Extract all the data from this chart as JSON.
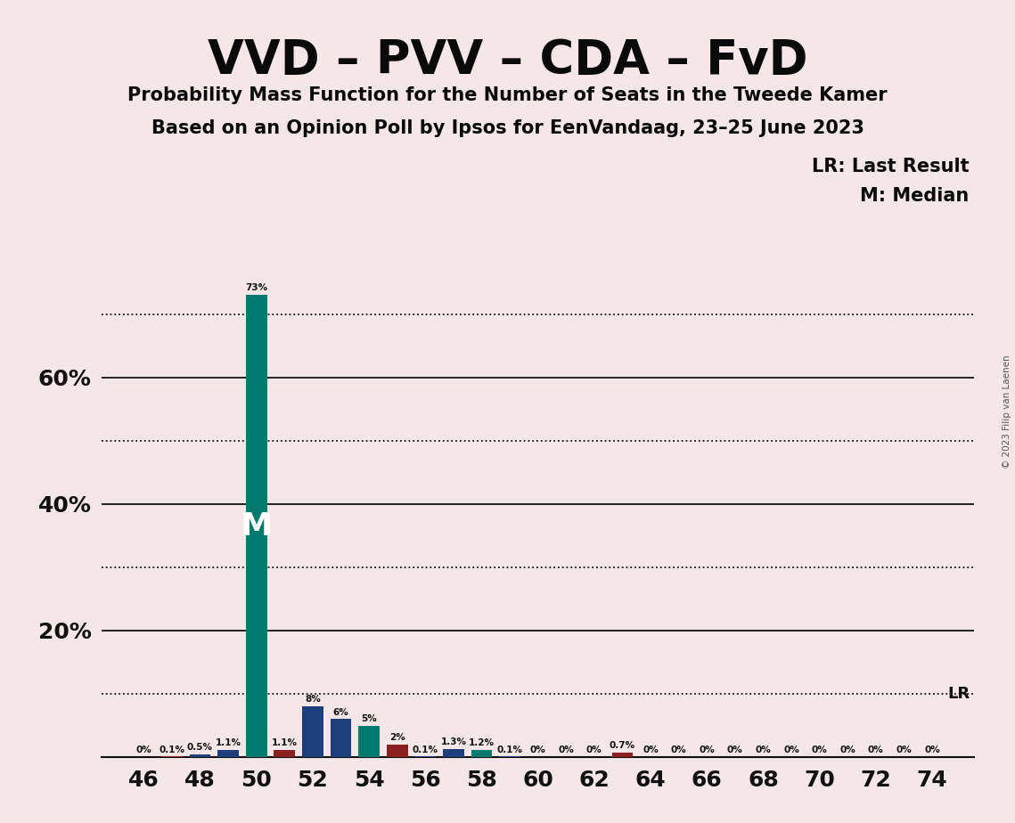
{
  "title": "VVD – PVV – CDA – FvD",
  "subtitle1": "Probability Mass Function for the Number of Seats in the Tweede Kamer",
  "subtitle2": "Based on an Opinion Poll by Ipsos for EenVandaag, 23–25 June 2023",
  "background_color": "#F5E6E8",
  "watermark": "© 2023 Filip van Laenen",
  "lr_label": "LR: Last Result",
  "m_label": "M: Median",
  "lr_value": 0.1,
  "median_seat": 50,
  "xlim": [
    44.5,
    75.5
  ],
  "ylim": [
    0,
    0.78
  ],
  "solid_lines": [
    0.0,
    0.2,
    0.4,
    0.6
  ],
  "dotted_lines": [
    0.1,
    0.3,
    0.5,
    0.7
  ],
  "ytick_positions": [
    0.2,
    0.4,
    0.6
  ],
  "ytick_labels": [
    "20%",
    "40%",
    "60%"
  ],
  "bars": [
    {
      "seat": 46,
      "color": "#1F3F7A",
      "value": 0.0,
      "label": "0%"
    },
    {
      "seat": 47,
      "color": "#8B2020",
      "value": 0.001,
      "label": "0.1%"
    },
    {
      "seat": 48,
      "color": "#1F3F7A",
      "value": 0.005,
      "label": "0.5%"
    },
    {
      "seat": 49,
      "color": "#1F3F7A",
      "value": 0.011,
      "label": "1.1%"
    },
    {
      "seat": 50,
      "color": "#007A6E",
      "value": 0.73,
      "label": "73%"
    },
    {
      "seat": 51,
      "color": "#8B2020",
      "value": 0.011,
      "label": "1.1%"
    },
    {
      "seat": 52,
      "color": "#1F3F7A",
      "value": 0.08,
      "label": "8%"
    },
    {
      "seat": 53,
      "color": "#1F3F7A",
      "value": 0.06,
      "label": "6%"
    },
    {
      "seat": 54,
      "color": "#007A6E",
      "value": 0.05,
      "label": "5%"
    },
    {
      "seat": 55,
      "color": "#8B2020",
      "value": 0.02,
      "label": "2%"
    },
    {
      "seat": 56,
      "color": "#1F3F7A",
      "value": 0.001,
      "label": "0.1%"
    },
    {
      "seat": 57,
      "color": "#1F3F7A",
      "value": 0.013,
      "label": "1.3%"
    },
    {
      "seat": 58,
      "color": "#007A6E",
      "value": 0.012,
      "label": "1.2%"
    },
    {
      "seat": 59,
      "color": "#1F3F7A",
      "value": 0.001,
      "label": "0.1%"
    },
    {
      "seat": 60,
      "color": "#1F3F7A",
      "value": 0.0,
      "label": "0%"
    },
    {
      "seat": 61,
      "color": "#1F3F7A",
      "value": 0.0,
      "label": "0%"
    },
    {
      "seat": 62,
      "color": "#1F3F7A",
      "value": 0.0,
      "label": "0%"
    },
    {
      "seat": 63,
      "color": "#8B2020",
      "value": 0.007,
      "label": "0.7%"
    },
    {
      "seat": 64,
      "color": "#1F3F7A",
      "value": 0.0,
      "label": "0%"
    },
    {
      "seat": 65,
      "color": "#1F3F7A",
      "value": 0.0,
      "label": "0%"
    },
    {
      "seat": 66,
      "color": "#1F3F7A",
      "value": 0.0,
      "label": "0%"
    },
    {
      "seat": 67,
      "color": "#1F3F7A",
      "value": 0.0,
      "label": "0%"
    },
    {
      "seat": 68,
      "color": "#1F3F7A",
      "value": 0.0,
      "label": "0%"
    },
    {
      "seat": 69,
      "color": "#1F3F7A",
      "value": 0.0,
      "label": "0%"
    },
    {
      "seat": 70,
      "color": "#1F3F7A",
      "value": 0.0,
      "label": "0%"
    },
    {
      "seat": 71,
      "color": "#1F3F7A",
      "value": 0.0,
      "label": "0%"
    },
    {
      "seat": 72,
      "color": "#1F3F7A",
      "value": 0.0,
      "label": "0%"
    },
    {
      "seat": 73,
      "color": "#1F3F7A",
      "value": 0.0,
      "label": "0%"
    },
    {
      "seat": 74,
      "color": "#1F3F7A",
      "value": 0.0,
      "label": "0%"
    }
  ],
  "xticks": [
    46,
    48,
    50,
    52,
    54,
    56,
    58,
    60,
    62,
    64,
    66,
    68,
    70,
    72,
    74
  ]
}
